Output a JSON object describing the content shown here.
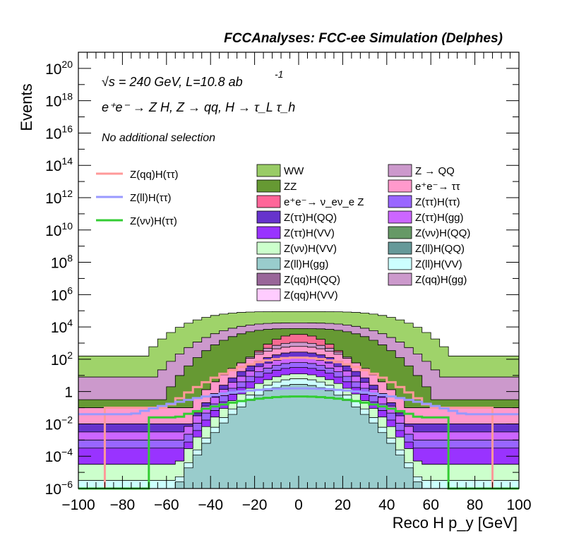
{
  "header": {
    "title": "FCCAnalyses: FCC-ee Simulation (Delphes)",
    "energy_label": "√s = 240 GeV, L=10.8 ab",
    "energy_label_sup": "-1",
    "process_label": "e⁺e⁻ → Z H, Z → qq, H → τ_L τ_h",
    "selection_label": "No additional selection"
  },
  "chart_data": {
    "type": "bar",
    "stacked": true,
    "log_y": true,
    "xlabel": "Reco H p_y [GeV]",
    "ylabel": "Events",
    "xlim": [
      -100,
      100
    ],
    "ylim": [
      1e-06,
      1e+21
    ],
    "x_ticks": [
      "−100",
      "−80",
      "−60",
      "−40",
      "−20",
      "0",
      "20",
      "40",
      "60",
      "80",
      "100"
    ],
    "y_ticks": [
      "10^-6",
      "10^-4",
      "10^-2",
      "1",
      "10^2",
      "10^4",
      "10^6",
      "10^8",
      "10^10",
      "10^12",
      "10^14",
      "10^16",
      "10^18",
      "10^20"
    ],
    "stack_envelopes": [
      {
        "name": "WW",
        "color": "#9fd36a",
        "peak_log10": 4.95,
        "width": 70,
        "shape": 4,
        "floor_log10": 2.2
      },
      {
        "name": "Z → QQ",
        "color": "#cc99cc",
        "peak_log10": 4.25,
        "width": 65,
        "shape": 3,
        "floor_log10": 0.9
      },
      {
        "name": "ZZ",
        "color": "#669933",
        "peak_log10": 3.9,
        "width": 62,
        "shape": 3,
        "floor_log10": -0.5
      },
      {
        "name": "e⁺e⁻ → ν_e ν_e Z",
        "color": "#f76b92",
        "peak_log10": 3.55,
        "width": 40,
        "shape": 2,
        "floor_log10": -1.5
      },
      {
        "name": "Z(qq)H(gg)",
        "color": "#cc99cc",
        "peak_log10": 3.05,
        "width": 48,
        "shape": 2,
        "floor_log10": -1.3
      },
      {
        "name": "e⁺e⁻ → ττ",
        "color": "#ff99cc",
        "peak_log10": 2.8,
        "width": 50,
        "shape": 2,
        "floor_log10": -1.0
      },
      {
        "name": "Z(ττ)H(QQ)",
        "color": "#6633cc",
        "peak_log10": 2.45,
        "width": 50,
        "shape": 2,
        "floor_log10": -2.0
      },
      {
        "name": "Z(ττ)H(gg)",
        "color": "#cc66ff",
        "peak_log10": 2.1,
        "width": 52,
        "shape": 2,
        "floor_log10": -2.5
      },
      {
        "name": "Z(ττ)H(ττ)",
        "color": "#9966ff",
        "peak_log10": 1.8,
        "width": 52,
        "shape": 2,
        "floor_log10": -3.0
      },
      {
        "name": "Z(ττ)H(VV)",
        "color": "#9933ff",
        "peak_log10": 1.5,
        "width": 52,
        "shape": 2,
        "floor_log10": -3.5
      },
      {
        "name": "Z(νν)H(VV)",
        "color": "#ccffcc",
        "peak_log10": 1.1,
        "width": 55,
        "shape": 2,
        "floor_log10": -4.5
      },
      {
        "name": "Z(ll)H(VV)",
        "color": "#ccffff",
        "peak_log10": 0.8,
        "width": 55,
        "shape": 2,
        "floor_log10": -5.5
      },
      {
        "name": "Z(ll)H(gg)",
        "color": "#99cccc",
        "peak_log10": 0.45,
        "width": 60,
        "shape": 2,
        "floor_log10": -7
      }
    ],
    "signal_lines": [
      {
        "name": "Z(qq)H(ττ)",
        "color": "#ff9999",
        "peak_log10": 2.1,
        "width": 60,
        "shape": 2,
        "floor_log10": -1.0,
        "edge": 88
      },
      {
        "name": "Z(ll)H(ττ)",
        "color": "#9999ff",
        "peak_log10": 0.2,
        "width": 75,
        "shape": 2,
        "floor_log10": -1.4,
        "edge": 98
      },
      {
        "name": "Z(νν)H(ττ)",
        "color": "#33cc33",
        "peak_log10": -0.3,
        "width": 55,
        "shape": 2,
        "floor_log10": -1.6,
        "edge": 66
      }
    ]
  },
  "legend": {
    "lines": [
      "Z(qq)H(ττ)",
      "Z(ll)H(ττ)",
      "Z(νν)H(ττ)"
    ],
    "line_colors": [
      "#ff9999",
      "#9999ff",
      "#33cc33"
    ],
    "col1": [
      "WW",
      "ZZ",
      "e⁺e⁻→ ν_eν_e Z",
      "Z(ττ)H(QQ)",
      "Z(ττ)H(VV)",
      "Z(νν)H(VV)",
      "Z(ll)H(gg)",
      "Z(qq)H(QQ)",
      "Z(qq)H(VV)"
    ],
    "col1_colors": [
      "#99cc66",
      "#669933",
      "#ff6699",
      "#6633cc",
      "#9933ff",
      "#ccffcc",
      "#99cccc",
      "#996699",
      "#ffccff"
    ],
    "col2": [
      "Z → QQ",
      "e⁺e⁻→ ττ",
      "Z(ττ)H(ττ)",
      "Z(ττ)H(gg)",
      "Z(νν)H(QQ)",
      "Z(ll)H(QQ)",
      "Z(ll)H(VV)",
      "Z(qq)H(gg)"
    ],
    "col2_colors": [
      "#cc99cc",
      "#ff99cc",
      "#9966ff",
      "#cc66ff",
      "#669966",
      "#669999",
      "#ccffff",
      "#cc99cc"
    ]
  }
}
